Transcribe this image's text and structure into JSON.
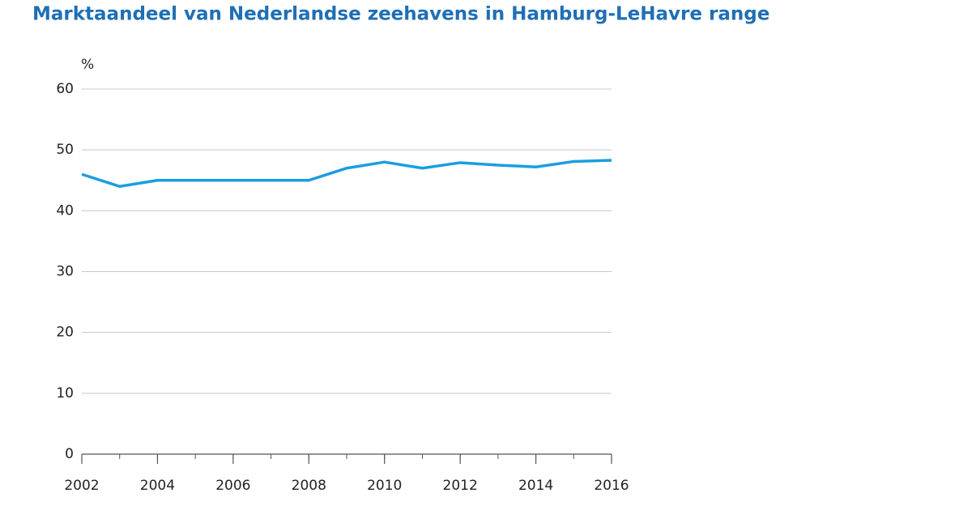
{
  "chart_data": {
    "type": "line",
    "title": "Marktaandeel van Nederlandse zeehavens in Hamburg-LeHavre range",
    "ylabel": "%",
    "x": [
      2002,
      2003,
      2004,
      2005,
      2006,
      2007,
      2008,
      2009,
      2010,
      2011,
      2012,
      2013,
      2014,
      2015,
      2016
    ],
    "series": [
      {
        "name": "Marktaandeel",
        "color": "#1a9ee0",
        "values": [
          46,
          44,
          45,
          45,
          45,
          45,
          45,
          47,
          48,
          47,
          47.9,
          47.5,
          47.2,
          48.1,
          48.3
        ]
      }
    ],
    "xlim": [
      2002,
      2016
    ],
    "xticks": [
      2002,
      2004,
      2006,
      2008,
      2010,
      2012,
      2014,
      2016
    ],
    "ylim": [
      0,
      60
    ],
    "yticks": [
      0,
      10,
      20,
      30,
      40,
      50,
      60
    ],
    "grid": true
  }
}
